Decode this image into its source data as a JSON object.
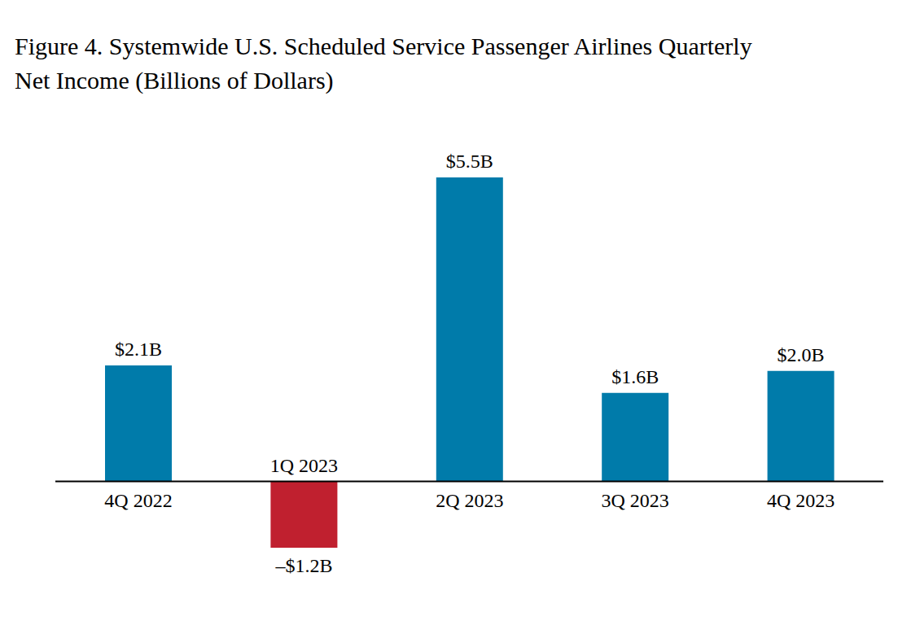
{
  "chart_data": {
    "type": "bar",
    "title": "Figure 4. Systemwide U.S. Scheduled Service Passenger Airlines Quarterly\nNet Income (Billions of Dollars)",
    "categories": [
      "4Q 2022",
      "1Q 2023",
      "2Q 2023",
      "3Q 2023",
      "4Q 2023"
    ],
    "values": [
      2.1,
      -1.2,
      5.5,
      1.6,
      2.0
    ],
    "value_labels": [
      "$2.1B",
      "–$1.2B",
      "$5.5B",
      "$1.6B",
      "$2.0B"
    ],
    "colors": [
      "#007baa",
      "#c0202f",
      "#007baa",
      "#007baa",
      "#007baa"
    ],
    "data_labels": true,
    "tick_labels": false
  }
}
